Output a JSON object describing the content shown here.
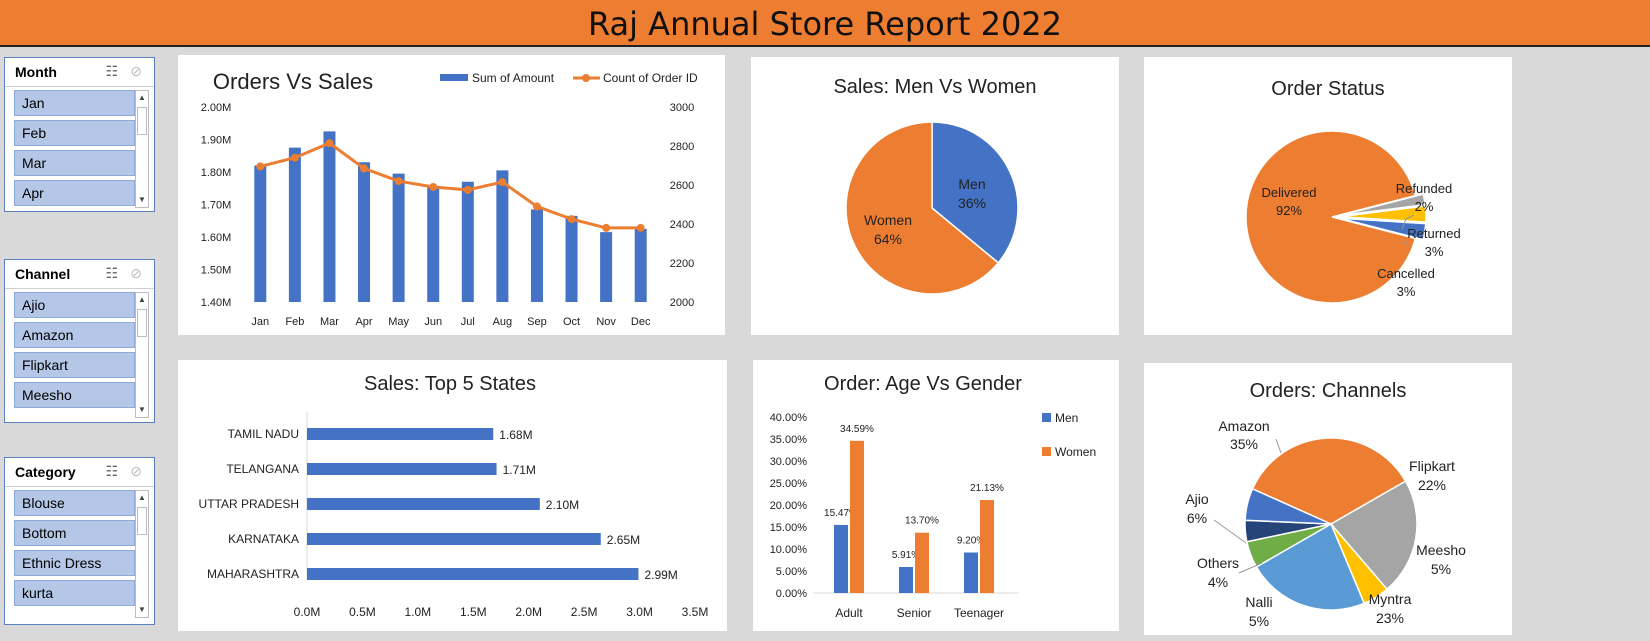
{
  "header": {
    "title": "Raj Annual Store Report 2022",
    "color": "#ed7d31"
  },
  "slicers": [
    {
      "title": "Month",
      "items": [
        "Jan",
        "Feb",
        "Mar",
        "Apr"
      ]
    },
    {
      "title": "Channel",
      "items": [
        "Ajio",
        "Amazon",
        "Flipkart",
        "Meesho"
      ]
    },
    {
      "title": "Category",
      "items": [
        "Blouse",
        "Bottom",
        "Ethnic Dress",
        "kurta"
      ]
    }
  ],
  "colors": {
    "blue": "#4472c4",
    "orange": "#ed7d31",
    "gray": "#a5a5a5",
    "yellow": "#ffc000",
    "lightblue": "#5b9bd5",
    "green": "#70ad47",
    "navy": "#264478"
  },
  "chart_data": [
    {
      "type": "bar",
      "title": "Orders Vs Sales",
      "categories": [
        "Jan",
        "Feb",
        "Mar",
        "Apr",
        "May",
        "Jun",
        "Jul",
        "Aug",
        "Sep",
        "Oct",
        "Nov",
        "Dec"
      ],
      "series": [
        {
          "name": "Sum of Amount",
          "type": "bar",
          "axis": "left",
          "values": [
            1.82,
            1.875,
            1.925,
            1.83,
            1.795,
            1.755,
            1.77,
            1.805,
            1.685,
            1.665,
            1.615,
            1.625
          ]
        },
        {
          "name": "Count of Order ID",
          "type": "line",
          "axis": "right",
          "values": [
            2695,
            2740,
            2815,
            2685,
            2620,
            2590,
            2575,
            2615,
            2490,
            2425,
            2380,
            2380
          ]
        }
      ],
      "ylim": [
        1.4,
        2.0
      ],
      "yticks": [
        "1.40M",
        "1.50M",
        "1.60M",
        "1.70M",
        "1.80M",
        "1.90M",
        "2.00M"
      ],
      "y2lim": [
        2000,
        3000
      ],
      "y2ticks": [
        "2000",
        "2200",
        "2400",
        "2600",
        "2800",
        "3000"
      ],
      "legend": "top-right"
    },
    {
      "type": "pie",
      "title": "Sales: Men Vs Women",
      "labels": [
        "Men",
        "Women"
      ],
      "values": [
        36,
        64
      ],
      "value_labels": [
        "36%",
        "64%"
      ]
    },
    {
      "type": "pie",
      "title": "Order Status",
      "labels": [
        "Delivered",
        "Refunded",
        "Returned",
        "Cancelled"
      ],
      "values": [
        92,
        2,
        3,
        3
      ],
      "value_labels": [
        "92%",
        "2%",
        "3%",
        "3%"
      ]
    },
    {
      "type": "bar",
      "orientation": "horizontal",
      "title": "Sales: Top 5 States",
      "categories": [
        "TAMIL NADU",
        "TELANGANA",
        "UTTAR PRADESH",
        "KARNATAKA",
        "MAHARASHTRA"
      ],
      "values": [
        1.68,
        1.71,
        2.1,
        2.65,
        2.99
      ],
      "value_labels": [
        "1.68M",
        "1.71M",
        "2.10M",
        "2.65M",
        "2.99M"
      ],
      "xlim": [
        0,
        3.5
      ],
      "xticks": [
        "0.0M",
        "0.5M",
        "1.0M",
        "1.5M",
        "2.0M",
        "2.5M",
        "3.0M",
        "3.5M"
      ]
    },
    {
      "type": "bar",
      "title": "Order: Age Vs Gender",
      "categories": [
        "Adult",
        "Senior",
        "Teenager"
      ],
      "series": [
        {
          "name": "Men",
          "values": [
            15.47,
            5.91,
            9.2
          ],
          "labels": [
            "15.47%",
            "5.91%",
            "9.20%"
          ]
        },
        {
          "name": "Women",
          "values": [
            34.59,
            13.7,
            21.13
          ],
          "labels": [
            "34.59%",
            "13.70%",
            "21.13%"
          ]
        }
      ],
      "ylim": [
        0,
        40
      ],
      "yticks": [
        "0.00%",
        "5.00%",
        "10.00%",
        "15.00%",
        "20.00%",
        "25.00%",
        "30.00%",
        "35.00%",
        "40.00%"
      ],
      "legend": "right"
    },
    {
      "type": "pie",
      "title": "Orders: Channels",
      "labels": [
        "Amazon",
        "Flipkart",
        "Meesho",
        "Myntra",
        "Nalli",
        "Others",
        "Ajio"
      ],
      "values": [
        35,
        22,
        5,
        23,
        5,
        4,
        6
      ],
      "value_labels": [
        "35%",
        "22%",
        "5%",
        "23%",
        "5%",
        "4%",
        "6%"
      ]
    }
  ]
}
